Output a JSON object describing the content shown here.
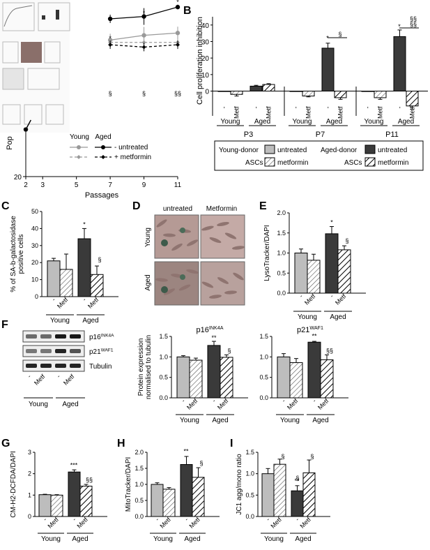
{
  "palette": {
    "young_untreated": "#bdbdbd",
    "aged_untreated": "#3a3a3a",
    "metformin": "#ffffff",
    "young_line": "#999999",
    "aged_line": "#000000"
  },
  "chart_data": [
    {
      "panel": "A",
      "type": "line",
      "xlabel": "Passages",
      "ylabel": "Pop",
      "xticks": [
        2,
        3,
        5,
        7,
        9,
        11
      ],
      "yticks": [
        20
      ],
      "legend_headers": [
        "Young",
        "Aged"
      ],
      "legend_labels": [
        "- untreated",
        "+ metformin"
      ],
      "series": [
        {
          "name": "Young untreated",
          "x": [
            2,
            2.3,
            7,
            9,
            11
          ],
          "y": [
            40,
            44,
            78,
            80,
            81
          ],
          "err": [
            0,
            0,
            3,
            4,
            3
          ]
        },
        {
          "name": "Aged untreated",
          "x": [
            2,
            2.3,
            7,
            9,
            11
          ],
          "y": [
            40,
            44,
            87,
            88,
            92
          ],
          "err": [
            0,
            0,
            2,
            4,
            0
          ]
        },
        {
          "name": "Young metformin",
          "x": [
            2,
            2.3,
            7,
            9,
            11
          ],
          "y": [
            40,
            44,
            77,
            77,
            77
          ],
          "err": [
            0,
            0,
            2,
            2,
            3
          ]
        },
        {
          "name": "Aged metformin",
          "x": [
            2,
            2.3,
            7,
            9,
            11
          ],
          "y": [
            40,
            44,
            76,
            75,
            76
          ],
          "err": [
            0,
            0,
            2,
            2,
            2
          ]
        }
      ],
      "annotations": [
        "*",
        "*",
        "*\n*",
        "§",
        "§",
        "§§"
      ],
      "ylim": [
        20,
        95
      ]
    },
    {
      "panel": "B",
      "type": "bar",
      "ylabel": "Cell proliferation inhibition",
      "yticks": [
        0,
        10,
        20,
        30,
        40
      ],
      "ylim": [
        -15,
        45
      ],
      "groups": [
        "P3",
        "P7",
        "P11"
      ],
      "bar_labels": [
        "-",
        "Metf",
        "-",
        "Metf"
      ],
      "group_labels": [
        "Young",
        "Aged"
      ],
      "values": [
        [
          0,
          -2,
          3,
          4
        ],
        [
          0,
          -3,
          26,
          -4
        ],
        [
          0,
          -4,
          33,
          -9
        ]
      ],
      "err": [
        [
          0,
          1,
          0.5,
          0.5
        ],
        [
          0,
          0.5,
          3,
          1
        ],
        [
          0,
          1,
          4,
          2
        ]
      ],
      "annotations": [
        "*",
        "§",
        "*",
        "§§\n§§"
      ],
      "legend": {
        "young": "Young-donor\nASCs",
        "aged": "Aged-donor\nASCs",
        "untreated": "untreated",
        "metformin": "metformin"
      }
    },
    {
      "panel": "C",
      "type": "bar",
      "ylabel": "% of SA-b-galactosidase positive cells",
      "yticks": [
        0,
        10,
        20,
        30,
        40,
        50
      ],
      "ylim": [
        0,
        50
      ],
      "bar_labels": [
        "-",
        "Metf",
        "-",
        "Metf"
      ],
      "group_labels": [
        "Young",
        "Aged"
      ],
      "values": [
        21,
        16,
        34,
        13
      ],
      "err": [
        1.5,
        9,
        6,
        5
      ],
      "annotations": [
        "*",
        "§"
      ]
    },
    {
      "panel": "D",
      "type": "image_grid",
      "columns": [
        "untreated",
        "Metformin"
      ],
      "rows": [
        "Young",
        "Aged"
      ]
    },
    {
      "panel": "E",
      "type": "bar",
      "ylabel": "LysoTracker/DAPI",
      "yticks": [
        0,
        0.5,
        1.0,
        1.5,
        2.0
      ],
      "ylim": [
        0,
        2
      ],
      "bar_labels": [
        "-",
        "Metf",
        "-",
        "Metf"
      ],
      "group_labels": [
        "Young",
        "Aged"
      ],
      "values": [
        1.0,
        0.82,
        1.48,
        1.08
      ],
      "err": [
        0.1,
        0.15,
        0.18,
        0.1
      ],
      "annotations": [
        "*",
        "§"
      ]
    },
    {
      "panel": "F",
      "type": "blot",
      "labels": [
        "p16INK4A",
        "p21WAF1",
        "Tubulin"
      ],
      "bar_labels": [
        "-",
        "Metf",
        "-",
        "Metf"
      ],
      "group_labels": [
        "Young",
        "Aged"
      ]
    },
    {
      "panel": "F",
      "type": "bar",
      "title": "p16INK4A",
      "ylabel": "Protein expression normalised to tubulin",
      "yticks": [
        0,
        0.5,
        1.0,
        1.5
      ],
      "ylim": [
        0,
        1.5
      ],
      "bar_labels": [
        "-",
        "Metf",
        "-",
        "Metf"
      ],
      "group_labels": [
        "Young",
        "Aged"
      ],
      "values": [
        1.0,
        0.92,
        1.28,
        0.99
      ],
      "err": [
        0.03,
        0.05,
        0.1,
        0.06
      ],
      "annotations": [
        "**",
        "§"
      ]
    },
    {
      "panel": "F",
      "type": "bar",
      "title": "p21WAF1",
      "yticks": [
        0,
        0.5,
        1.0,
        1.5
      ],
      "ylim": [
        0,
        1.5
      ],
      "bar_labels": [
        "-",
        "Metf",
        "-",
        "Metf"
      ],
      "group_labels": [
        "Young",
        "Aged"
      ],
      "values": [
        1.0,
        0.86,
        1.36,
        0.93
      ],
      "err": [
        0.08,
        0.1,
        0.02,
        0.12
      ],
      "annotations": [
        "**",
        "§§"
      ]
    },
    {
      "panel": "G",
      "type": "bar",
      "ylabel": "CM-H2-DCFDA/DAPI",
      "yticks": [
        0,
        1,
        2,
        3
      ],
      "ylim": [
        0,
        3
      ],
      "bar_labels": [
        "-",
        "Metf",
        "-",
        "Metf"
      ],
      "group_labels": [
        "Young",
        "Aged"
      ],
      "values": [
        1.02,
        1.0,
        2.08,
        1.42
      ],
      "err": [
        0.02,
        0.02,
        0.1,
        0.08
      ],
      "annotations": [
        "***",
        "§§"
      ]
    },
    {
      "panel": "H",
      "type": "bar",
      "ylabel": "MitoTracker/DAPI",
      "yticks": [
        0,
        0.5,
        1.0,
        1.5,
        2.0
      ],
      "ylim": [
        0,
        2
      ],
      "bar_labels": [
        "-",
        "Metf",
        "-",
        "Metf"
      ],
      "group_labels": [
        "Young",
        "Aged"
      ],
      "values": [
        1.0,
        0.85,
        1.62,
        1.22
      ],
      "err": [
        0.05,
        0.05,
        0.25,
        0.3
      ],
      "annotations": [
        "**",
        "§"
      ]
    },
    {
      "panel": "I",
      "type": "bar",
      "ylabel": "JC1 agg/mono ratio",
      "yticks": [
        0,
        0.5,
        1.0,
        1.5
      ],
      "ylim": [
        0,
        1.5
      ],
      "bar_labels": [
        "-",
        "Metf",
        "-",
        "Metf"
      ],
      "group_labels": [
        "Young",
        "Aged"
      ],
      "values": [
        1.0,
        1.22,
        0.6,
        1.02
      ],
      "err": [
        0.12,
        0.12,
        0.12,
        0.3
      ],
      "annotations": [
        "**",
        "§",
        "§",
        "§"
      ]
    }
  ],
  "panel_letters": [
    "B",
    "C",
    "D",
    "E",
    "F",
    "G",
    "H",
    "I"
  ]
}
